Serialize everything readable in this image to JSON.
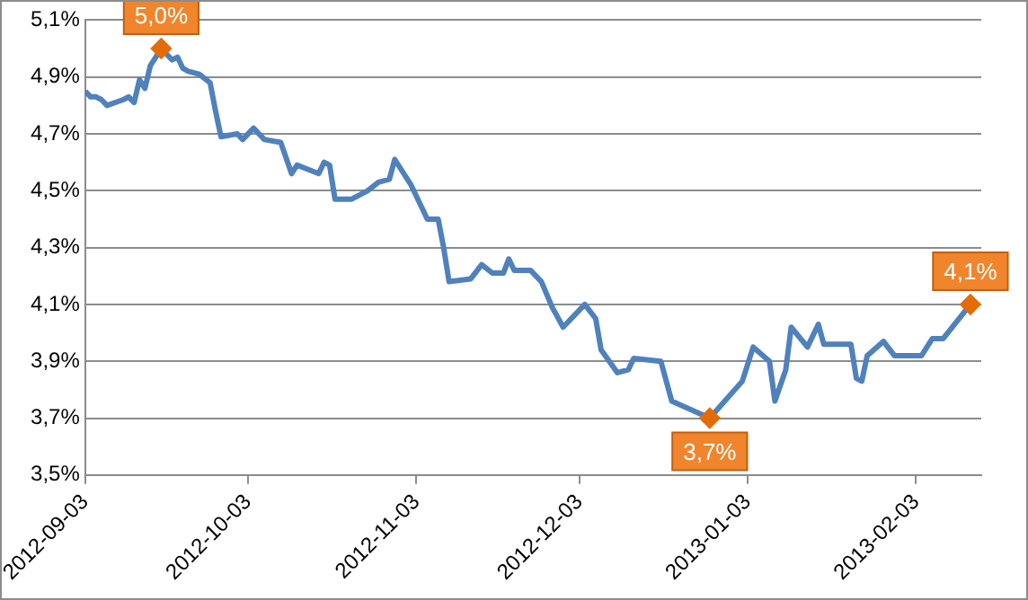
{
  "chart_data": {
    "type": "line",
    "x": [
      "2012-09-03",
      "2012-09-04",
      "2012-09-05",
      "2012-09-06",
      "2012-09-07",
      "2012-09-10",
      "2012-09-11",
      "2012-09-12",
      "2012-09-13",
      "2012-09-14",
      "2012-09-15",
      "2012-09-16",
      "2012-09-17",
      "2012-09-19",
      "2012-09-20",
      "2012-09-21",
      "2012-09-22",
      "2012-09-24",
      "2012-09-26",
      "2012-09-27",
      "2012-09-28",
      "2012-10-01",
      "2012-10-02",
      "2012-10-04",
      "2012-10-06",
      "2012-10-09",
      "2012-10-11",
      "2012-10-12",
      "2012-10-16",
      "2012-10-17",
      "2012-10-18",
      "2012-10-19",
      "2012-10-22",
      "2012-10-25",
      "2012-10-27",
      "2012-10-29",
      "2012-10-30",
      "2012-11-02",
      "2012-11-05",
      "2012-11-07",
      "2012-11-08",
      "2012-11-09",
      "2012-11-13",
      "2012-11-15",
      "2012-11-17",
      "2012-11-19",
      "2012-11-20",
      "2012-11-21",
      "2012-11-24",
      "2012-11-26",
      "2012-11-28",
      "2012-11-30",
      "2012-12-04",
      "2012-12-06",
      "2012-12-07",
      "2012-12-10",
      "2012-12-12",
      "2012-12-13",
      "2012-12-18",
      "2012-12-20",
      "2012-12-27",
      "2013-01-02",
      "2013-01-04",
      "2013-01-07",
      "2013-01-08",
      "2013-01-10",
      "2013-01-11",
      "2013-01-14",
      "2013-01-16",
      "2013-01-17",
      "2013-01-22",
      "2013-01-23",
      "2013-01-24",
      "2013-01-25",
      "2013-01-28",
      "2013-01-30",
      "2013-02-04",
      "2013-02-06",
      "2013-02-08",
      "2013-02-13"
    ],
    "series": [
      {
        "color": "#4f81bd",
        "values": [
          4.85,
          4.83,
          4.83,
          4.82,
          4.8,
          4.82,
          4.83,
          4.81,
          4.89,
          4.86,
          4.94,
          4.97,
          5.0,
          4.96,
          4.97,
          4.93,
          4.92,
          4.91,
          4.88,
          4.78,
          4.69,
          4.7,
          4.68,
          4.72,
          4.68,
          4.67,
          4.56,
          4.59,
          4.56,
          4.6,
          4.59,
          4.47,
          4.47,
          4.5,
          4.53,
          4.54,
          4.61,
          4.52,
          4.4,
          4.4,
          4.3,
          4.18,
          4.19,
          4.24,
          4.21,
          4.21,
          4.26,
          4.22,
          4.22,
          4.18,
          4.09,
          4.02,
          4.1,
          4.05,
          3.94,
          3.86,
          3.87,
          3.91,
          3.9,
          3.76,
          3.7,
          3.83,
          3.95,
          3.9,
          3.76,
          3.87,
          4.02,
          3.95,
          4.03,
          3.96,
          3.96,
          3.84,
          3.83,
          3.92,
          3.97,
          3.92,
          3.92,
          3.98,
          3.98,
          4.1
        ],
        "value_labels": [
          null,
          null,
          null,
          null,
          null,
          null,
          null,
          null,
          null,
          null,
          null,
          null,
          "5,0%",
          null,
          null,
          null,
          null,
          null,
          null,
          null,
          null,
          null,
          null,
          null,
          null,
          null,
          null,
          null,
          null,
          null,
          null,
          null,
          null,
          null,
          null,
          null,
          null,
          null,
          null,
          null,
          null,
          null,
          null,
          null,
          null,
          null,
          null,
          null,
          null,
          null,
          null,
          null,
          null,
          null,
          null,
          null,
          null,
          null,
          null,
          null,
          "3,7%",
          null,
          null,
          null,
          null,
          null,
          null,
          null,
          null,
          null,
          null,
          null,
          null,
          null,
          null,
          null,
          null,
          null,
          null,
          "4,1%"
        ]
      }
    ],
    "xlim": [
      "2012-09-03",
      "2013-02-15"
    ],
    "xticks": [
      "2012-09-03",
      "2012-10-03",
      "2012-11-03",
      "2012-12-03",
      "2013-01-03",
      "2013-02-03"
    ],
    "ylim": [
      3.5,
      5.1
    ],
    "yticks": [
      {
        "value": 3.5,
        "label": "3,5%"
      },
      {
        "value": 3.7,
        "label": "3,7%"
      },
      {
        "value": 3.9,
        "label": "3,9%"
      },
      {
        "value": 4.1,
        "label": "4,1%"
      },
      {
        "value": 4.3,
        "label": "4,3%"
      },
      {
        "value": 4.5,
        "label": "4,5%"
      },
      {
        "value": 4.7,
        "label": "4,7%"
      },
      {
        "value": 4.9,
        "label": "4,9%"
      },
      {
        "value": 5.1,
        "label": "5,1%"
      }
    ],
    "grid": "y",
    "legend": false,
    "marker": "none",
    "line_style": "solid"
  }
}
